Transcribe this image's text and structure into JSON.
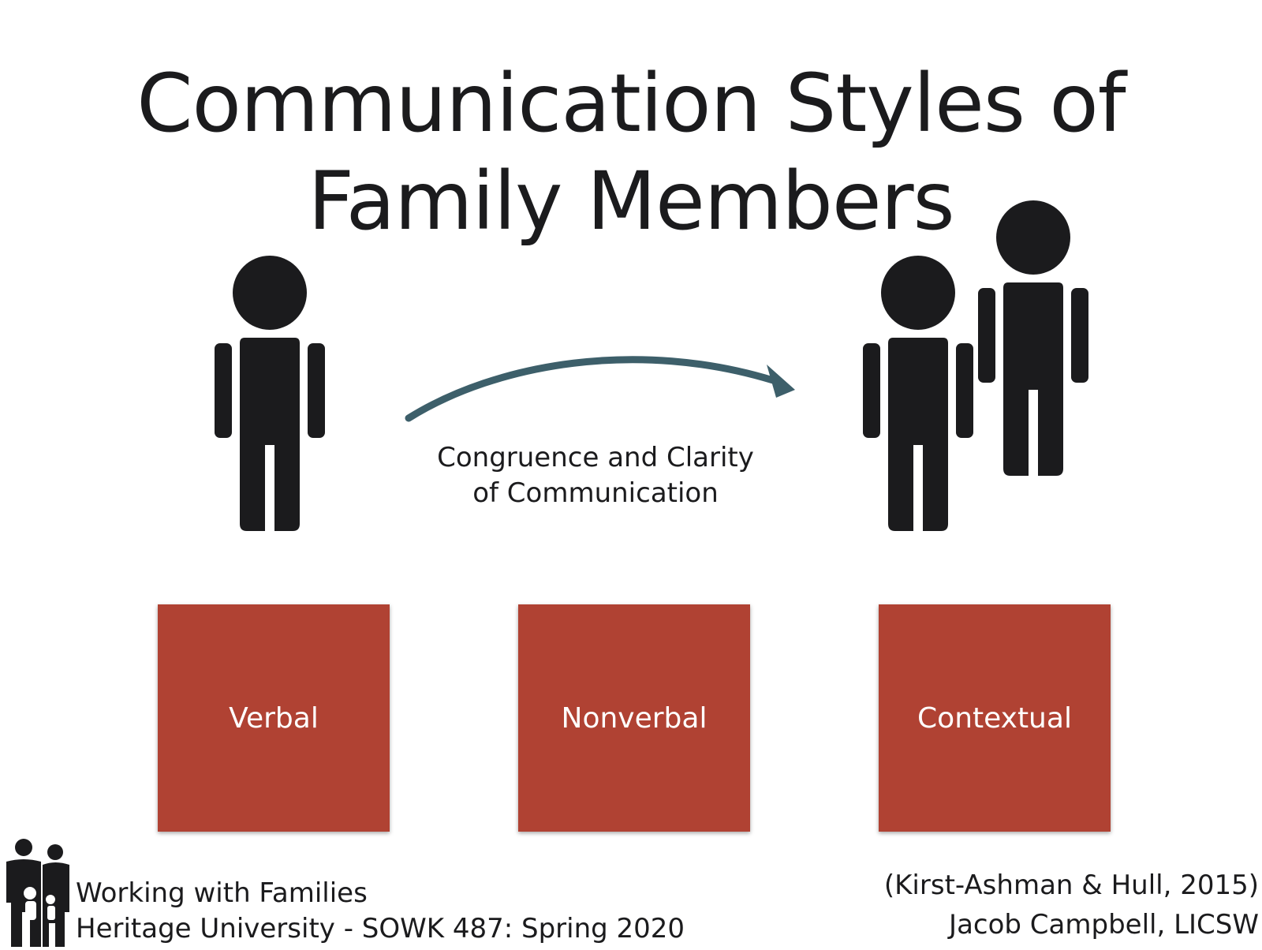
{
  "slide": {
    "title_line1": "Communication Styles of",
    "title_line2": "Family Members",
    "caption_line1": "Congruence and Clarity",
    "caption_line2": "of Communication",
    "boxes": [
      {
        "label": "Verbal"
      },
      {
        "label": "Nonverbal"
      },
      {
        "label": "Contextual"
      }
    ],
    "box_color": "#b04233",
    "arrow_color": "#3d5f6a",
    "figure_color": "#1b1b1d"
  },
  "footer": {
    "course_line1": "Working with Families",
    "course_line2": "Heritage University - SOWK 487: Spring 2020",
    "citation": "(Kirst-Ashman & Hull, 2015)",
    "author": "Jacob Campbell, LICSW"
  }
}
